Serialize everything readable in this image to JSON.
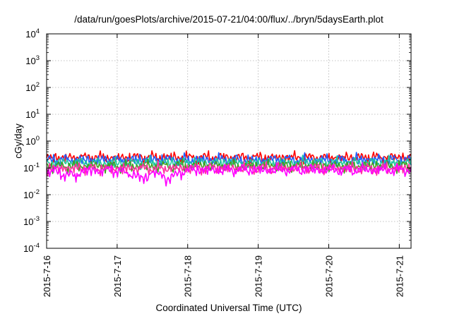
{
  "chart_data": {
    "type": "line",
    "title": "/data/run/goesPlots/archive/2015-07-21/04:00/flux/../bryn/5daysEarth.plot",
    "xlabel": "Coordinated Universal Time (UTC)",
    "ylabel": "cGy/day",
    "y_scale": "log",
    "ylim": [
      0.0001,
      10000
    ],
    "y_ticks": [
      {
        "base": "10",
        "exp": "-4",
        "value": 0.0001
      },
      {
        "base": "10",
        "exp": "-3",
        "value": 0.001
      },
      {
        "base": "10",
        "exp": "-2",
        "value": 0.01
      },
      {
        "base": "10",
        "exp": "-1",
        "value": 0.1
      },
      {
        "base": "10",
        "exp": "0",
        "value": 1
      },
      {
        "base": "10",
        "exp": "1",
        "value": 10
      },
      {
        "base": "10",
        "exp": "2",
        "value": 100
      },
      {
        "base": "10",
        "exp": "3",
        "value": 1000
      },
      {
        "base": "10",
        "exp": "4",
        "value": 10000
      }
    ],
    "x_ticks": [
      "2015-7-16",
      "2015-7-17",
      "2015-7-18",
      "2015-7-19",
      "2015-7-20",
      "2015-7-21"
    ],
    "xlim": [
      "2015-07-16T00:00",
      "2015-07-21T04:00"
    ],
    "grid": true,
    "legend": "none",
    "series": [
      {
        "color": "#ff0000",
        "x": [
          "2015-07-16T00:00",
          "2015-07-16T12:00",
          "2015-07-17T00:00",
          "2015-07-17T12:00",
          "2015-07-18T00:00",
          "2015-07-18T12:00",
          "2015-07-19T00:00",
          "2015-07-19T12:00",
          "2015-07-20T00:00",
          "2015-07-20T12:00",
          "2015-07-21T00:00",
          "2015-07-21T04:00"
        ],
        "values": [
          0.24,
          0.25,
          0.24,
          0.25,
          0.24,
          0.25,
          0.24,
          0.25,
          0.24,
          0.25,
          0.25,
          0.24
        ]
      },
      {
        "color": "#1f5fff",
        "x": [
          "2015-07-16T00:00",
          "2015-07-16T12:00",
          "2015-07-17T00:00",
          "2015-07-17T12:00",
          "2015-07-18T00:00",
          "2015-07-18T12:00",
          "2015-07-19T00:00",
          "2015-07-19T12:00",
          "2015-07-20T00:00",
          "2015-07-20T12:00",
          "2015-07-21T00:00",
          "2015-07-21T04:00"
        ],
        "values": [
          0.2,
          0.21,
          0.2,
          0.21,
          0.2,
          0.21,
          0.2,
          0.21,
          0.2,
          0.21,
          0.21,
          0.2
        ]
      },
      {
        "color": "#20c8a0",
        "x": [
          "2015-07-16T00:00",
          "2015-07-16T12:00",
          "2015-07-17T00:00",
          "2015-07-17T12:00",
          "2015-07-18T00:00",
          "2015-07-18T12:00",
          "2015-07-19T00:00",
          "2015-07-19T12:00",
          "2015-07-20T00:00",
          "2015-07-20T12:00",
          "2015-07-21T00:00",
          "2015-07-21T04:00"
        ],
        "values": [
          0.16,
          0.16,
          0.15,
          0.16,
          0.16,
          0.16,
          0.15,
          0.16,
          0.16,
          0.16,
          0.16,
          0.16
        ]
      },
      {
        "color": "#40a020",
        "x": [
          "2015-07-16T00:00",
          "2015-07-16T12:00",
          "2015-07-17T00:00",
          "2015-07-17T12:00",
          "2015-07-18T00:00",
          "2015-07-18T12:00",
          "2015-07-19T00:00",
          "2015-07-19T12:00",
          "2015-07-20T00:00",
          "2015-07-20T12:00",
          "2015-07-21T00:00",
          "2015-07-21T04:00"
        ],
        "values": [
          0.12,
          0.12,
          0.12,
          0.12,
          0.12,
          0.12,
          0.12,
          0.12,
          0.12,
          0.12,
          0.12,
          0.12
        ]
      },
      {
        "color": "#ff30a0",
        "x": [
          "2015-07-16T00:00",
          "2015-07-16T12:00",
          "2015-07-17T00:00",
          "2015-07-17T12:00",
          "2015-07-18T00:00",
          "2015-07-18T12:00",
          "2015-07-19T00:00",
          "2015-07-19T12:00",
          "2015-07-20T00:00",
          "2015-07-20T12:00",
          "2015-07-21T00:00",
          "2015-07-21T04:00"
        ],
        "values": [
          0.1,
          0.1,
          0.1,
          0.1,
          0.1,
          0.1,
          0.1,
          0.1,
          0.1,
          0.1,
          0.1,
          0.1
        ]
      },
      {
        "color": "#ff00ff",
        "x": [
          "2015-07-16T00:00",
          "2015-07-16T10:00",
          "2015-07-16T12:00",
          "2015-07-17T00:00",
          "2015-07-17T10:00",
          "2015-07-17T12:00",
          "2015-07-17T17:00",
          "2015-07-18T00:00",
          "2015-07-18T12:00",
          "2015-07-19T00:00",
          "2015-07-19T12:00",
          "2015-07-20T00:00",
          "2015-07-20T12:00",
          "2015-07-21T00:00",
          "2015-07-21T04:00"
        ],
        "values": [
          0.085,
          0.05,
          0.08,
          0.085,
          0.04,
          0.08,
          0.04,
          0.085,
          0.085,
          0.085,
          0.085,
          0.085,
          0.085,
          0.085,
          0.085
        ]
      }
    ]
  }
}
